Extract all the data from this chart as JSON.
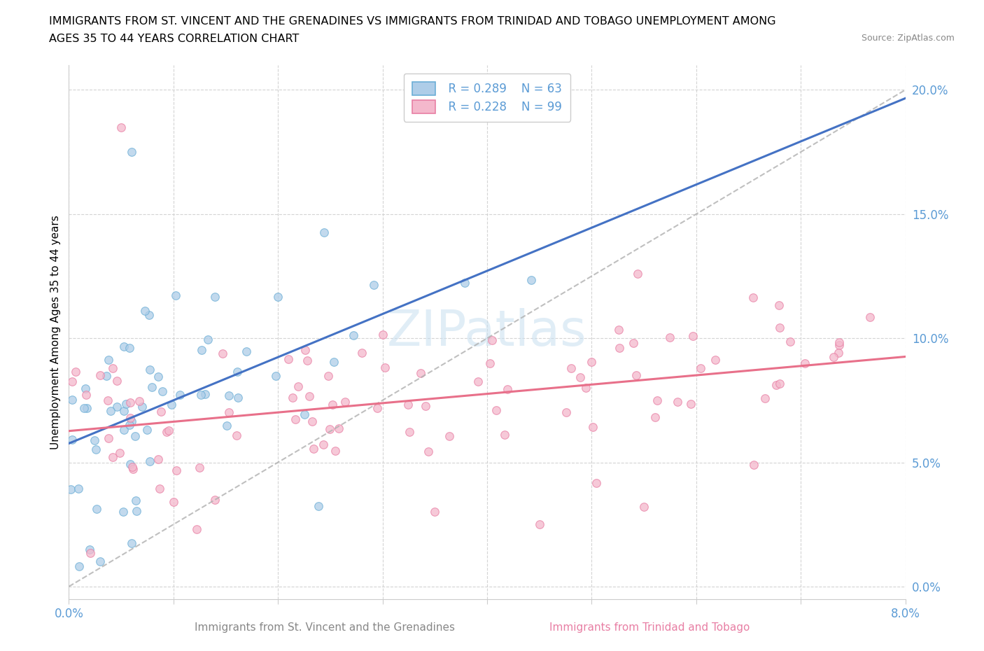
{
  "title_line1": "IMMIGRANTS FROM ST. VINCENT AND THE GRENADINES VS IMMIGRANTS FROM TRINIDAD AND TOBAGO UNEMPLOYMENT AMONG",
  "title_line2": "AGES 35 TO 44 YEARS CORRELATION CHART",
  "source": "Source: ZipAtlas.com",
  "ylabel": "Unemployment Among Ages 35 to 44 years",
  "xlim": [
    0.0,
    0.08
  ],
  "ylim": [
    -0.005,
    0.21
  ],
  "xticks": [
    0.0,
    0.01,
    0.02,
    0.03,
    0.04,
    0.05,
    0.06,
    0.07,
    0.08
  ],
  "xticklabels_ends": [
    "0.0%",
    "8.0%"
  ],
  "yticks": [
    0.0,
    0.05,
    0.1,
    0.15,
    0.2
  ],
  "yticklabels": [
    "0.0%",
    "5.0%",
    "10.0%",
    "15.0%",
    "20.0%"
  ],
  "color_blue_fill": "#aecde8",
  "color_blue_edge": "#6baed6",
  "color_pink_fill": "#f4b8cc",
  "color_pink_edge": "#e87fa4",
  "color_blue_line": "#4472c4",
  "color_pink_line": "#e8708a",
  "color_gray_dash": "#b0b0b0",
  "color_axis_labels": "#5b9bd5",
  "color_grid": "#d0d0d0",
  "color_watermark": "#c8dff0",
  "legend_r1": "R = 0.289",
  "legend_n1": "N = 63",
  "legend_r2": "R = 0.228",
  "legend_n2": "N = 99",
  "legend_label1": "  R = 0.289    N = 63",
  "legend_label2": "  R = 0.228    N = 99",
  "xlabel_left": "Immigrants from St. Vincent and the Grenadines",
  "xlabel_right": "Immigrants from Trinidad and Tobago",
  "watermark": "ZIPatlas",
  "blue_intercept": 0.055,
  "blue_slope": 1.8,
  "pink_intercept": 0.06,
  "pink_slope": 0.55,
  "gray_dash_intercept": 0.0,
  "gray_dash_slope": 2.5
}
